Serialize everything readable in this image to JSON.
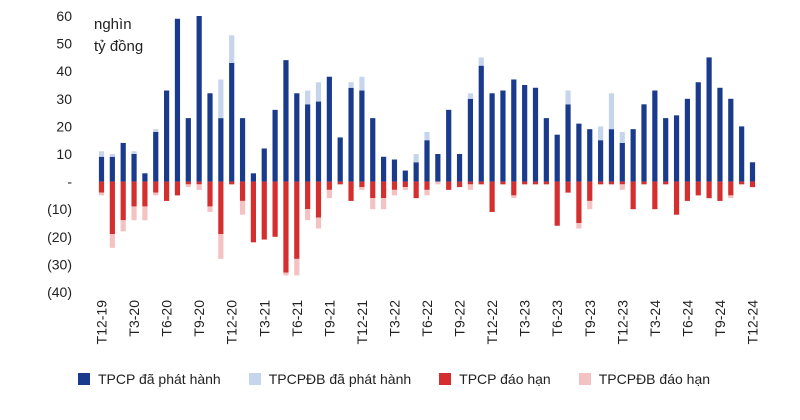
{
  "chart_data": {
    "type": "bar",
    "unit_line1": "nghìn",
    "unit_line2": "tỷ đồng",
    "y_ticks": [
      {
        "value": 60,
        "label": "60"
      },
      {
        "value": 50,
        "label": "50"
      },
      {
        "value": 40,
        "label": "40"
      },
      {
        "value": 30,
        "label": "30"
      },
      {
        "value": 20,
        "label": "20"
      },
      {
        "value": 10,
        "label": "10"
      },
      {
        "value": 0,
        "label": "-"
      },
      {
        "value": -10,
        "label": "(10)"
      },
      {
        "value": -20,
        "label": "(20)"
      },
      {
        "value": -30,
        "label": "(30)"
      },
      {
        "value": -40,
        "label": "(40)"
      }
    ],
    "ylim": [
      -40,
      60
    ],
    "x_tick_labels": [
      "T12-19",
      "T3-20",
      "T6-20",
      "T9-20",
      "T12-20",
      "T3-21",
      "T6-21",
      "T9-21",
      "T12-21",
      "T3-22",
      "T6-22",
      "T9-22",
      "T12-22",
      "T3-23",
      "T6-23",
      "T9-23",
      "T12-23",
      "T3-24",
      "T6-24",
      "T9-24",
      "T12-24"
    ],
    "x_tick_every": 3,
    "series": [
      {
        "name": "TPCP đã phát hành",
        "color": "#1a3a8c",
        "values": [
          9,
          9,
          14,
          10,
          3,
          18,
          33,
          59,
          23,
          60,
          32,
          23,
          43,
          23,
          3,
          12,
          26,
          44,
          32,
          28,
          29,
          38,
          16,
          34,
          33,
          23,
          9,
          8,
          4,
          7,
          15,
          10,
          26,
          10,
          30,
          42,
          32,
          33,
          37,
          35,
          34,
          23,
          17,
          28,
          21,
          19,
          15,
          19,
          14,
          19,
          28,
          33,
          23,
          24,
          30,
          36,
          45,
          34,
          30,
          20,
          7
        ]
      },
      {
        "name": "TPCPĐB đã phát hành",
        "color": "#c6d5ec",
        "values": [
          2,
          1,
          0,
          1,
          0,
          1,
          0,
          0,
          0,
          0,
          0,
          14,
          10,
          0,
          0,
          0,
          0,
          0,
          0,
          5,
          7,
          0,
          0,
          2,
          5,
          0,
          0,
          0,
          0,
          3,
          3,
          0,
          0,
          0,
          2,
          3,
          0,
          0,
          0,
          0,
          0,
          0,
          0,
          5,
          0,
          0,
          5,
          13,
          4,
          0,
          0,
          0,
          0,
          0,
          0,
          0,
          0,
          0,
          0,
          0,
          0
        ]
      },
      {
        "name": "TPCP đáo hạn",
        "color": "#d42e2e",
        "values": [
          -4,
          -19,
          -14,
          -9,
          -9,
          -4,
          -7,
          -5,
          -1,
          -1,
          -9,
          -19,
          -1,
          -7,
          -22,
          -21,
          -20,
          -33,
          -28,
          -10,
          -13,
          -3,
          -1,
          -7,
          -2,
          -6,
          -6,
          -3,
          -2,
          -6,
          -3,
          0,
          -3,
          -2,
          -1,
          -1,
          -11,
          -1,
          -5,
          -1,
          -1,
          -1,
          -16,
          -4,
          -15,
          -7,
          -1,
          -1,
          -1,
          -10,
          -1,
          -10,
          -1,
          -12,
          -7,
          -5,
          -6,
          -7,
          -5,
          -1,
          -2
        ]
      },
      {
        "name": "TPCPĐB đáo hạn",
        "color": "#f4c2c2",
        "values": [
          -1,
          -5,
          -4,
          -5,
          -5,
          -1,
          0,
          0,
          -1,
          -2,
          -2,
          -9,
          0,
          -5,
          0,
          0,
          0,
          -1,
          -6,
          -4,
          -4,
          -3,
          0,
          0,
          -1,
          -4,
          -4,
          -2,
          -1,
          0,
          -2,
          -1,
          0,
          0,
          -2,
          0,
          0,
          0,
          -1,
          0,
          0,
          0,
          0,
          0,
          -2,
          -3,
          0,
          0,
          -2,
          0,
          0,
          0,
          0,
          0,
          0,
          0,
          0,
          0,
          -1,
          0,
          0
        ]
      }
    ],
    "legend_position": "bottom",
    "grid": false
  }
}
